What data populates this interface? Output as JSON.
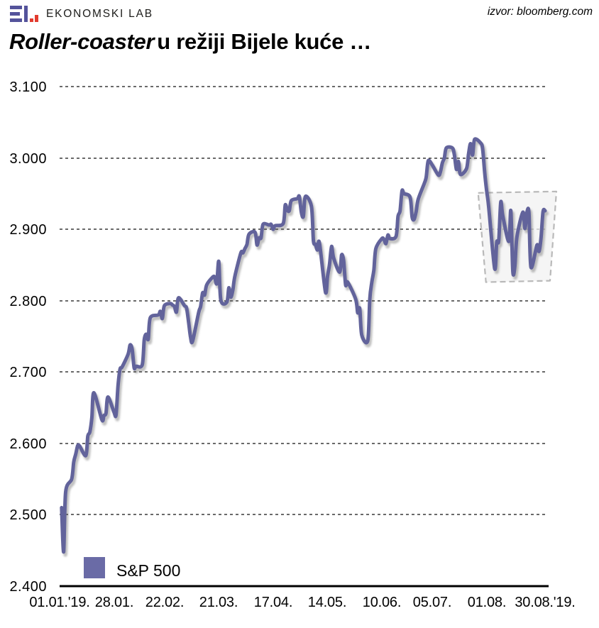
{
  "header": {
    "brand": {
      "text": "EKONOMSKI LAB",
      "logo_purple": "#54539b",
      "logo_red": "#e23b2e"
    },
    "source_credit": "izvor: bloomberg.com"
  },
  "title": {
    "emphasis": "Roller-coaster",
    "rest": "u režiji Bijele kuće …"
  },
  "chart_data": {
    "type": "line",
    "title": "Roller-coaster u režiji Bijele kuće …",
    "xlabel": "",
    "ylabel": "",
    "ylim": [
      2400,
      3100
    ],
    "x_range_dates": [
      "2019-01-01",
      "2019-08-30"
    ],
    "grid": "horizontal black dashed lines, solid bottom axis",
    "legend_position": "bottom-left",
    "line_color": "#62639b",
    "y_tick_labels_top_down": [
      "3.100",
      "3.000",
      "2.900",
      "2.800",
      "2.700",
      "2.600",
      "2.500",
      "2.400"
    ],
    "x_tick_labels": [
      "01.01.'19.",
      "28.01.",
      "22.02.",
      "21.03.",
      "17.04.",
      "14.05.",
      "10.06.",
      "05.07.",
      "01.08.",
      "30.08.'19."
    ],
    "legend": {
      "label": "S&P 500",
      "swatch_color": "#6a6ba6"
    },
    "highlight_box": {
      "date_start": "08-01",
      "date_end": "08-30",
      "value_top": 2952,
      "value_bottom": 2827,
      "fill": "#f2f2f2",
      "border": "#b9b9b9"
    },
    "series": [
      {
        "name": "S&P 500",
        "dates": [
          "01-02",
          "01-03",
          "01-04",
          "01-07",
          "01-08",
          "01-09",
          "01-10",
          "01-11",
          "01-14",
          "01-15",
          "01-16",
          "01-17",
          "01-18",
          "01-22",
          "01-23",
          "01-24",
          "01-25",
          "01-28",
          "01-29",
          "01-30",
          "01-31",
          "02-01",
          "02-04",
          "02-05",
          "02-06",
          "02-07",
          "02-08",
          "02-11",
          "02-12",
          "02-13",
          "02-14",
          "02-15",
          "02-19",
          "02-20",
          "02-21",
          "02-22",
          "02-25",
          "02-26",
          "02-27",
          "02-28",
          "03-01",
          "03-04",
          "03-05",
          "03-06",
          "03-07",
          "03-08",
          "03-11",
          "03-12",
          "03-13",
          "03-14",
          "03-15",
          "03-18",
          "03-19",
          "03-20",
          "03-21",
          "03-22",
          "03-25",
          "03-26",
          "03-27",
          "03-28",
          "03-29",
          "04-01",
          "04-02",
          "04-03",
          "04-04",
          "04-05",
          "04-08",
          "04-09",
          "04-10",
          "04-11",
          "04-12",
          "04-15",
          "04-16",
          "04-17",
          "04-18",
          "04-22",
          "04-23",
          "04-24",
          "04-25",
          "04-26",
          "04-29",
          "04-30",
          "05-01",
          "05-02",
          "05-03",
          "05-06",
          "05-07",
          "05-08",
          "05-09",
          "05-10",
          "05-13",
          "05-14",
          "05-15",
          "05-16",
          "05-17",
          "05-20",
          "05-21",
          "05-22",
          "05-23",
          "05-24",
          "05-28",
          "05-29",
          "05-30",
          "05-31",
          "06-03",
          "06-04",
          "06-05",
          "06-06",
          "06-07",
          "06-10",
          "06-11",
          "06-12",
          "06-13",
          "06-14",
          "06-17",
          "06-18",
          "06-19",
          "06-20",
          "06-21",
          "06-24",
          "06-25",
          "06-26",
          "06-27",
          "06-28",
          "07-01",
          "07-02",
          "07-03",
          "07-05",
          "07-08",
          "07-09",
          "07-10",
          "07-11",
          "07-12",
          "07-15",
          "07-16",
          "07-17",
          "07-18",
          "07-19",
          "07-22",
          "07-23",
          "07-24",
          "07-25",
          "07-26",
          "07-29",
          "07-30",
          "07-31",
          "08-01",
          "08-02",
          "08-05",
          "08-06",
          "08-07",
          "08-08",
          "08-09",
          "08-12",
          "08-13",
          "08-14",
          "08-15",
          "08-16",
          "08-19",
          "08-20",
          "08-21",
          "08-22",
          "08-23",
          "08-26",
          "08-27",
          "08-28",
          "08-29",
          "08-30"
        ],
        "values": [
          2510,
          2448,
          2532,
          2550,
          2574,
          2585,
          2597,
          2596,
          2583,
          2610,
          2616,
          2636,
          2671,
          2633,
          2639,
          2642,
          2665,
          2644,
          2640,
          2681,
          2704,
          2707,
          2725,
          2738,
          2732,
          2706,
          2708,
          2710,
          2745,
          2753,
          2746,
          2776,
          2780,
          2785,
          2775,
          2793,
          2796,
          2794,
          2792,
          2784,
          2804,
          2793,
          2790,
          2771,
          2749,
          2743,
          2783,
          2792,
          2811,
          2808,
          2822,
          2833,
          2833,
          2824,
          2855,
          2801,
          2798,
          2818,
          2805,
          2815,
          2834,
          2867,
          2867,
          2873,
          2879,
          2893,
          2896,
          2878,
          2888,
          2888,
          2907,
          2906,
          2907,
          2900,
          2905,
          2908,
          2934,
          2927,
          2926,
          2940,
          2943,
          2946,
          2924,
          2918,
          2946,
          2932,
          2884,
          2879,
          2871,
          2881,
          2812,
          2834,
          2851,
          2876,
          2860,
          2840,
          2864,
          2856,
          2822,
          2826,
          2802,
          2783,
          2789,
          2752,
          2744,
          2803,
          2826,
          2843,
          2873,
          2887,
          2886,
          2880,
          2892,
          2887,
          2890,
          2918,
          2926,
          2954,
          2950,
          2945,
          2917,
          2914,
          2925,
          2942,
          2964,
          2973,
          2996,
          2990,
          2976,
          2980,
          2993,
          3000,
          3014,
          3014,
          3004,
          2984,
          2995,
          2977,
          2985,
          3005,
          3020,
          3004,
          3026,
          3021,
          3013,
          2980,
          2954,
          2932,
          2845,
          2882,
          2884,
          2938,
          2919,
          2883,
          2926,
          2841,
          2848,
          2889,
          2924,
          2901,
          2924,
          2923,
          2847,
          2878,
          2869,
          2888,
          2925,
          2926
        ]
      }
    ]
  }
}
